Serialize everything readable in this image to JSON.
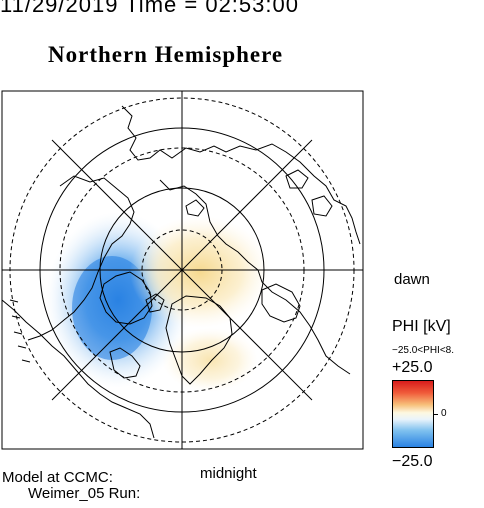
{
  "header": {
    "date_time": "11/29/2019 Time = 02:53:00"
  },
  "title": "Northern Hemisphere",
  "map": {
    "orientation_labels": {
      "right": "dawn",
      "bottom": "midnight"
    },
    "colors": {
      "positive": "#d81c1c",
      "negative": "#2a82e3",
      "neutral": "#ffffff"
    }
  },
  "colorbar": {
    "title": "PHI [kV]",
    "range_note": "−25.0<PHI<8.",
    "max_label": "+25.0",
    "mid_label": "0",
    "min_label": "−25.0"
  },
  "footer": {
    "line1": "Model at CCMC:",
    "line2": "Weimer_05 Run:"
  }
}
